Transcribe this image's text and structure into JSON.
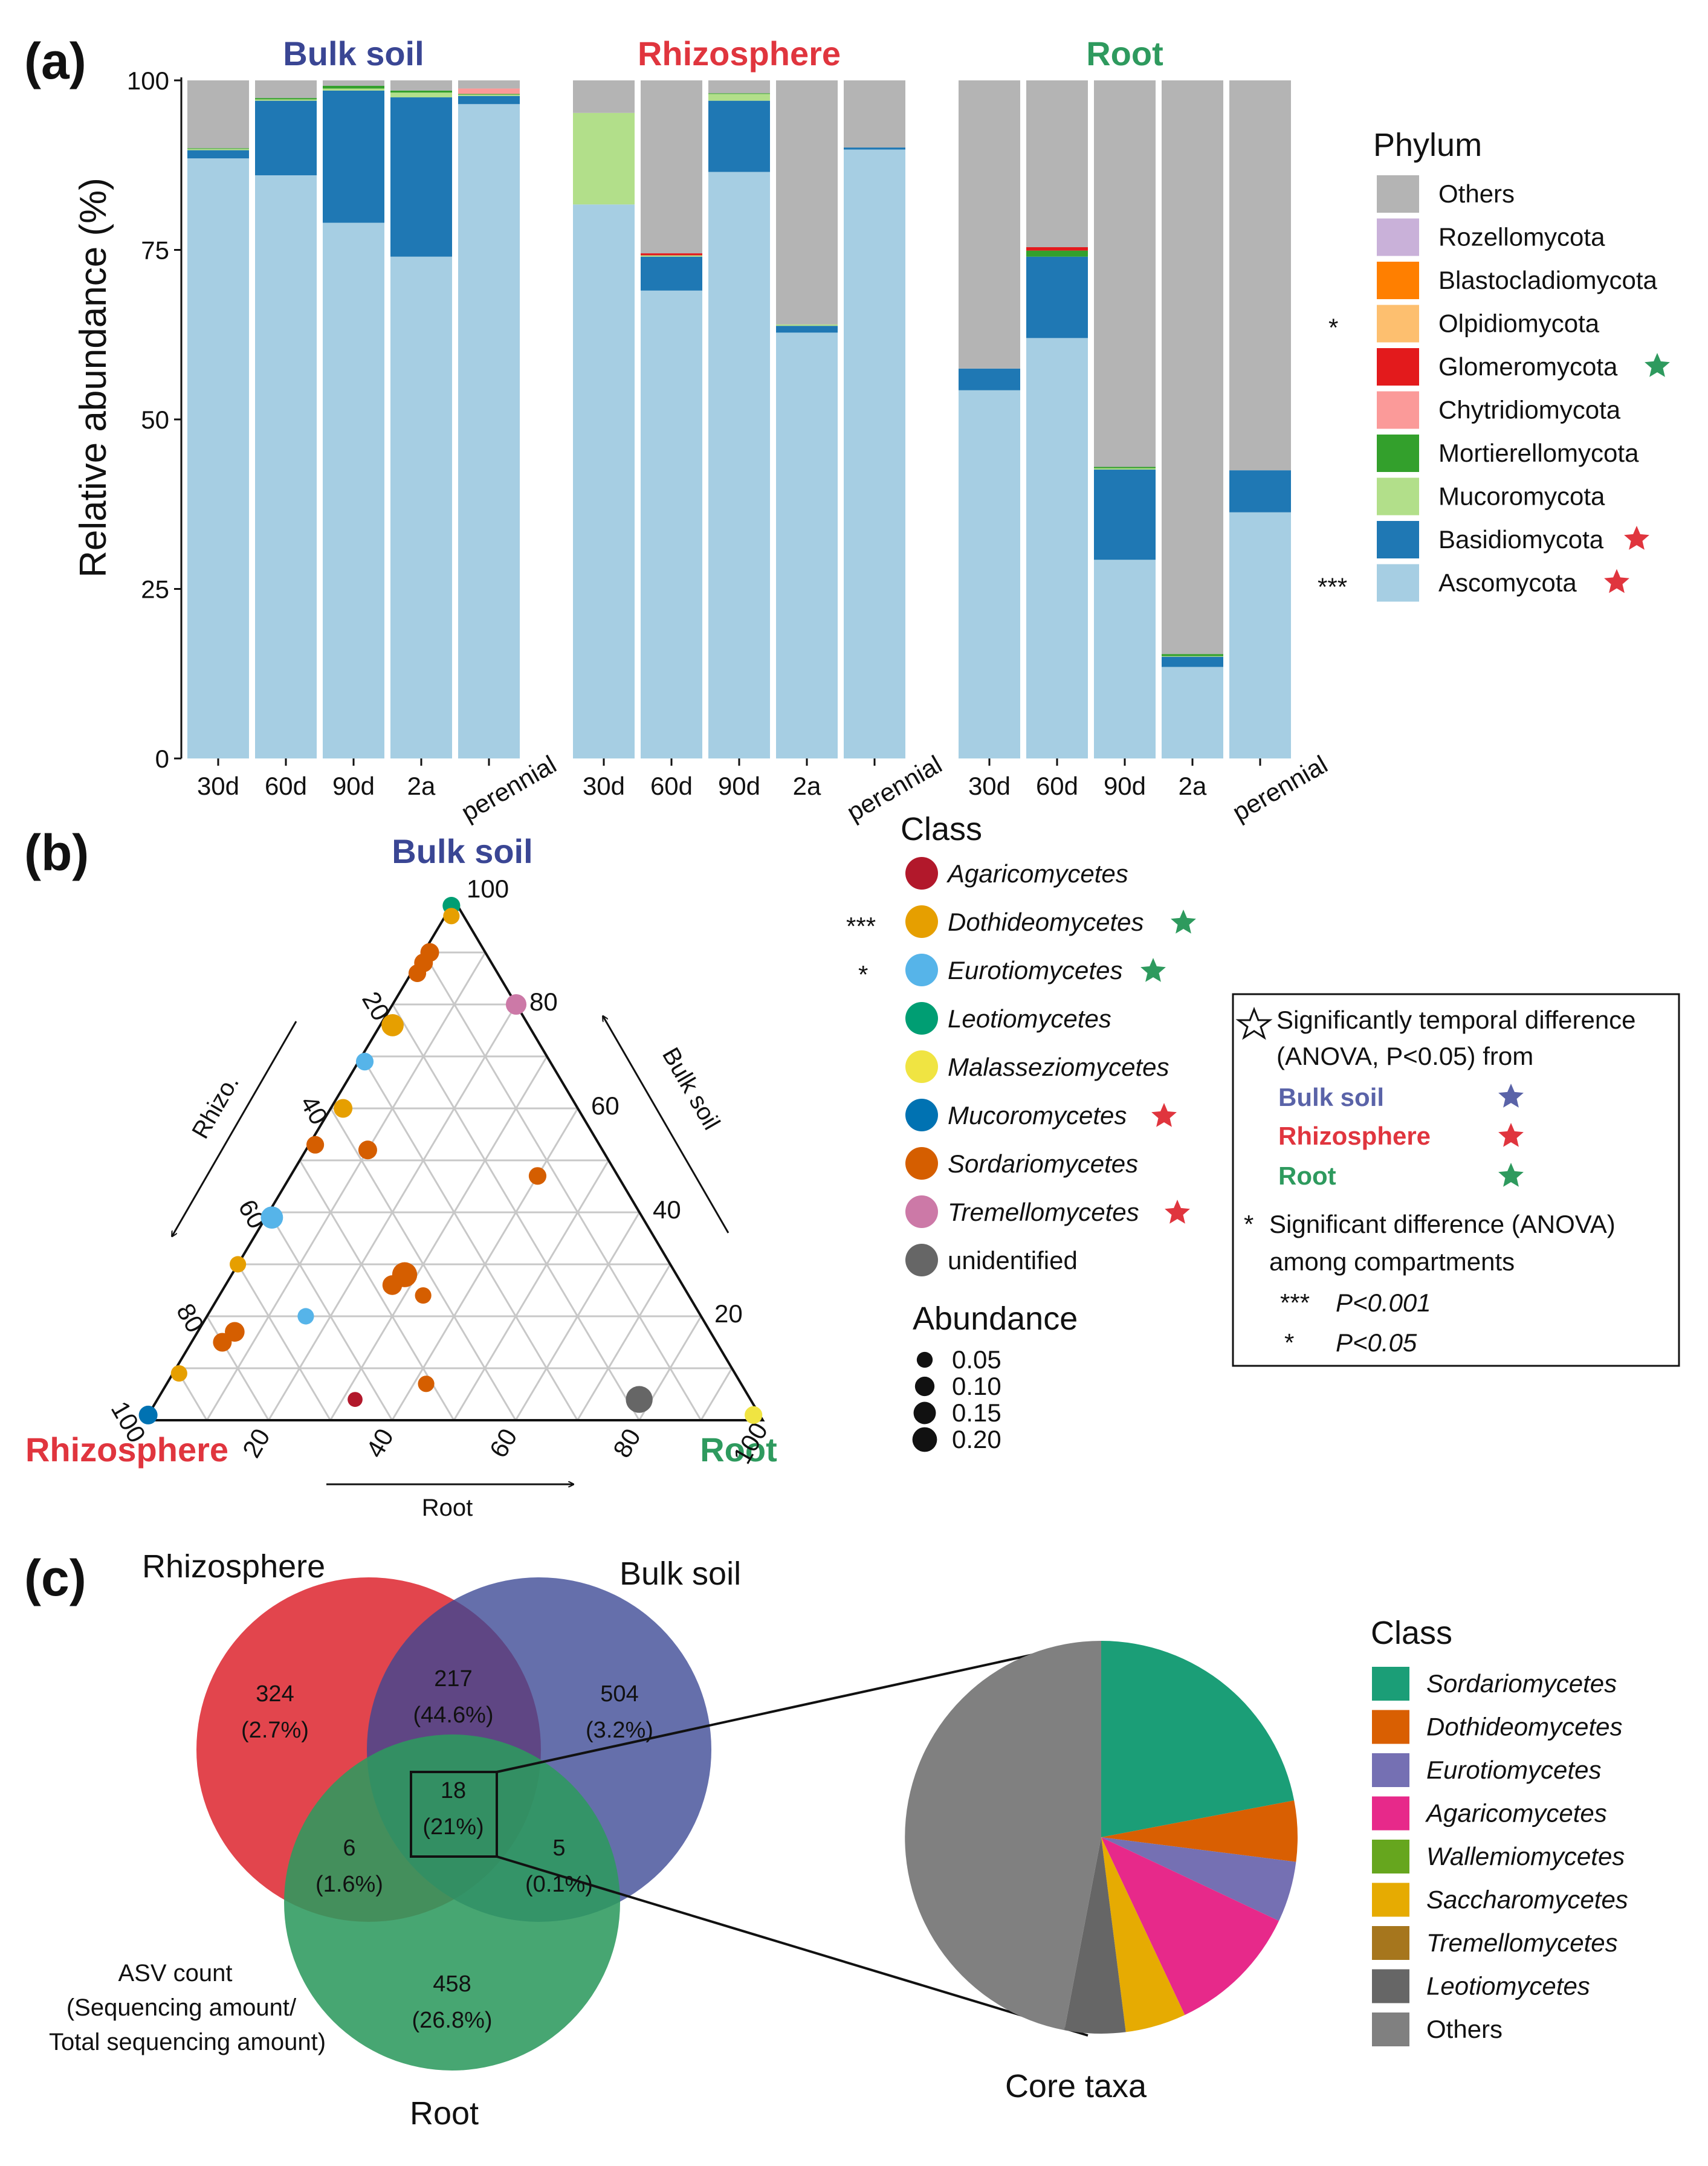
{
  "panels": {
    "a": "(a)",
    "b": "(b)",
    "c": "(c)"
  },
  "colors": {
    "bulk": "#3a4694",
    "rhizo": "#e0353e",
    "root": "#2e9a5e",
    "phyla": {
      "Others": "#b4b4b4",
      "Rozellomycota": "#c9b1d9",
      "Blastocladiomycota": "#ff7f00",
      "Olpidiomycota": "#fdbf6f",
      "Glomeromycota": "#e31a1c",
      "Chytridiomycota": "#fb9a99",
      "Mortierellomycota": "#33a02c",
      "Mucoromycota": "#b2df8a",
      "Basidiomycota": "#1f78b4",
      "Ascomycota": "#a6cee3"
    }
  },
  "chart_data": [
    {
      "type": "bar",
      "stacked": true,
      "ylabel": "Relative abundance (%)",
      "ylim": [
        0,
        100
      ],
      "yticks": [
        "0",
        "25",
        "50",
        "75",
        "100"
      ],
      "categories": [
        "30d",
        "60d",
        "90d",
        "2a",
        "perennial"
      ],
      "legend_title": "Phylum",
      "legend": [
        {
          "name": "Others",
          "sig": "",
          "star": ""
        },
        {
          "name": "Rozellomycota",
          "sig": "",
          "star": ""
        },
        {
          "name": "Blastocladiomycota",
          "sig": "",
          "star": ""
        },
        {
          "name": "Olpidiomycota",
          "sig": "*",
          "star": ""
        },
        {
          "name": "Glomeromycota",
          "sig": "",
          "star": "root"
        },
        {
          "name": "Chytridiomycota",
          "sig": "",
          "star": ""
        },
        {
          "name": "Mortierellomycota",
          "sig": "",
          "star": ""
        },
        {
          "name": "Mucoromycota",
          "sig": "",
          "star": ""
        },
        {
          "name": "Basidiomycota",
          "sig": "",
          "star": "rhizo"
        },
        {
          "name": "Ascomycota",
          "sig": "***",
          "star": "rhizo"
        }
      ],
      "stack_order": [
        "Ascomycota",
        "Basidiomycota",
        "Mucoromycota",
        "Mortierellomycota",
        "Chytridiomycota",
        "Glomeromycota",
        "Olpidiomycota",
        "Blastocladiomycota",
        "Rozellomycota",
        "Others"
      ],
      "facets": [
        {
          "name": "Bulk soil",
          "color_key": "bulk",
          "series": [
            {
              "name": "Ascomycota",
              "values": [
                88.5,
                86,
                79,
                74,
                96.5
              ]
            },
            {
              "name": "Basidiomycota",
              "values": [
                1.2,
                11,
                19.5,
                23.5,
                1.2
              ]
            },
            {
              "name": "Mucoromycota",
              "values": [
                0.2,
                0.2,
                0.3,
                0.7,
                0.2
              ]
            },
            {
              "name": "Mortierellomycota",
              "values": [
                0.1,
                0.2,
                0.4,
                0.3,
                0.1
              ]
            },
            {
              "name": "Chytridiomycota",
              "values": [
                0,
                0,
                0,
                0,
                0.8
              ]
            },
            {
              "name": "Glomeromycota",
              "values": [
                0,
                0,
                0,
                0,
                0
              ]
            },
            {
              "name": "Olpidiomycota",
              "values": [
                0,
                0,
                0,
                0,
                0
              ]
            },
            {
              "name": "Blastocladiomycota",
              "values": [
                0,
                0,
                0,
                0,
                0
              ]
            },
            {
              "name": "Rozellomycota",
              "values": [
                0,
                0,
                0,
                0,
                0
              ]
            },
            {
              "name": "Others",
              "values": [
                10,
                2.6,
                0.8,
                1.5,
                1.2
              ]
            }
          ]
        },
        {
          "name": "Rhizosphere",
          "color_key": "rhizo",
          "series": [
            {
              "name": "Ascomycota",
              "values": [
                81.7,
                69,
                86.5,
                62.8,
                89.8
              ]
            },
            {
              "name": "Basidiomycota",
              "values": [
                0,
                5,
                10.5,
                1,
                0.3
              ]
            },
            {
              "name": "Mucoromycota",
              "values": [
                13.5,
                0.2,
                1,
                0.2,
                0
              ]
            },
            {
              "name": "Mortierellomycota",
              "values": [
                0,
                0,
                0.1,
                0,
                0
              ]
            },
            {
              "name": "Chytridiomycota",
              "values": [
                0,
                0,
                0,
                0,
                0
              ]
            },
            {
              "name": "Glomeromycota",
              "values": [
                0,
                0.3,
                0,
                0,
                0
              ]
            },
            {
              "name": "Olpidiomycota",
              "values": [
                0,
                0,
                0,
                0,
                0
              ]
            },
            {
              "name": "Blastocladiomycota",
              "values": [
                0,
                0,
                0,
                0,
                0
              ]
            },
            {
              "name": "Rozellomycota",
              "values": [
                0,
                0,
                0,
                0,
                0
              ]
            },
            {
              "name": "Others",
              "values": [
                4.8,
                25.5,
                1.9,
                36,
                9.9
              ]
            }
          ]
        },
        {
          "name": "Root",
          "color_key": "root",
          "series": [
            {
              "name": "Ascomycota",
              "values": [
                54.3,
                62,
                29.3,
                13.5,
                36.3
              ]
            },
            {
              "name": "Basidiomycota",
              "values": [
                3.2,
                12,
                13.3,
                1.5,
                6.2
              ]
            },
            {
              "name": "Mucoromycota",
              "values": [
                0,
                0,
                0.2,
                0.1,
                0
              ]
            },
            {
              "name": "Mortierellomycota",
              "values": [
                0,
                0.9,
                0.2,
                0.3,
                0
              ]
            },
            {
              "name": "Chytridiomycota",
              "values": [
                0,
                0,
                0,
                0,
                0
              ]
            },
            {
              "name": "Glomeromycota",
              "values": [
                0,
                0.5,
                0,
                0,
                0
              ]
            },
            {
              "name": "Olpidiomycota",
              "values": [
                0,
                0,
                0,
                0,
                0
              ]
            },
            {
              "name": "Blastocladiomycota",
              "values": [
                0,
                0,
                0,
                0,
                0
              ]
            },
            {
              "name": "Rozellomycota",
              "values": [
                0,
                0,
                0,
                0,
                0
              ]
            },
            {
              "name": "Others",
              "values": [
                42.5,
                24.6,
                57,
                84.6,
                57.5
              ]
            }
          ]
        }
      ]
    },
    {
      "type": "ternary",
      "vertex_labels": {
        "top": "Bulk soil",
        "left": "Rhizosphere",
        "right": "Root"
      },
      "axis_names": {
        "left": "Rhizo.",
        "right": "Bulk soil",
        "bottom": "Root"
      },
      "ticks": [
        "20",
        "40",
        "60",
        "80",
        "100"
      ],
      "class_legend_title": "Class",
      "classes": [
        {
          "name": "Agaricomycetes",
          "color": "#b2182b",
          "sig": "",
          "star": ""
        },
        {
          "name": "Dothideomycetes",
          "color": "#e69f00",
          "sig": "***",
          "star": "root"
        },
        {
          "name": "Eurotiomycetes",
          "color": "#56b4e9",
          "sig": "*",
          "star": "root"
        },
        {
          "name": "Leotiomycetes",
          "color": "#009e73",
          "sig": "",
          "star": ""
        },
        {
          "name": "Malasseziomycetes",
          "color": "#f0e442",
          "sig": "",
          "star": ""
        },
        {
          "name": "Mucoromycetes",
          "color": "#0072b2",
          "sig": "",
          "star": "rhizo"
        },
        {
          "name": "Sordariomycetes",
          "color": "#d55e00",
          "sig": "",
          "star": ""
        },
        {
          "name": "Tremellomycetes",
          "color": "#cc79a7",
          "sig": "",
          "star": "rhizo"
        },
        {
          "name": "unidentified",
          "color": "#666666",
          "sig": "",
          "star": ""
        }
      ],
      "abundance_title": "Abundance",
      "abundance_levels": [
        "0.05",
        "0.10",
        "0.15",
        "0.20"
      ],
      "abundance_values": [
        0.05,
        0.1,
        0.15,
        0.2
      ],
      "points": [
        {
          "bulk": 99,
          "rhizo": 1,
          "root": 0,
          "class": 3,
          "abund": 0.04
        },
        {
          "bulk": 97,
          "rhizo": 2,
          "root": 1,
          "class": 1,
          "abund": 0.03
        },
        {
          "bulk": 90,
          "rhizo": 9,
          "root": 1,
          "class": 6,
          "abund": 0.05
        },
        {
          "bulk": 88,
          "rhizo": 11,
          "root": 1,
          "class": 6,
          "abund": 0.05
        },
        {
          "bulk": 86,
          "rhizo": 13,
          "root": 1,
          "class": 6,
          "abund": 0.04
        },
        {
          "bulk": 76,
          "rhizo": 22,
          "root": 2,
          "class": 1,
          "abund": 0.09
        },
        {
          "bulk": 80,
          "rhizo": 0,
          "root": 20,
          "class": 7,
          "abund": 0.07
        },
        {
          "bulk": 69,
          "rhizo": 30,
          "root": 1,
          "class": 2,
          "abund": 0.04
        },
        {
          "bulk": 60,
          "rhizo": 38,
          "root": 2,
          "class": 1,
          "abund": 0.05
        },
        {
          "bulk": 53,
          "rhizo": 46,
          "root": 1,
          "class": 6,
          "abund": 0.04
        },
        {
          "bulk": 52,
          "rhizo": 38,
          "root": 10,
          "class": 6,
          "abund": 0.05
        },
        {
          "bulk": 47,
          "rhizo": 13,
          "root": 40,
          "class": 6,
          "abund": 0.04
        },
        {
          "bulk": 39,
          "rhizo": 60,
          "root": 1,
          "class": 2,
          "abund": 0.09
        },
        {
          "bulk": 30,
          "rhizo": 70,
          "root": 0,
          "class": 1,
          "abund": 0.03
        },
        {
          "bulk": 28,
          "rhizo": 44,
          "root": 28,
          "class": 6,
          "abund": 0.13
        },
        {
          "bulk": 26,
          "rhizo": 47,
          "root": 27,
          "class": 6,
          "abund": 0.06
        },
        {
          "bulk": 24,
          "rhizo": 43,
          "root": 33,
          "class": 6,
          "abund": 0.03
        },
        {
          "bulk": 20,
          "rhizo": 64,
          "root": 16,
          "class": 2,
          "abund": 0.03
        },
        {
          "bulk": 17,
          "rhizo": 77,
          "root": 6,
          "class": 6,
          "abund": 0.06
        },
        {
          "bulk": 15,
          "rhizo": 80,
          "root": 5,
          "class": 6,
          "abund": 0.05
        },
        {
          "bulk": 9,
          "rhizo": 90,
          "root": 1,
          "class": 1,
          "abund": 0.03
        },
        {
          "bulk": 7,
          "rhizo": 51,
          "root": 42,
          "class": 6,
          "abund": 0.03
        },
        {
          "bulk": 4,
          "rhizo": 64,
          "root": 32,
          "class": 0,
          "abund": 0.02
        },
        {
          "bulk": 4,
          "rhizo": 18,
          "root": 78,
          "class": 8,
          "abund": 0.16
        },
        {
          "bulk": 1,
          "rhizo": 99,
          "root": 0,
          "class": 5,
          "abund": 0.05
        },
        {
          "bulk": 1,
          "rhizo": 1,
          "root": 98,
          "class": 4,
          "abund": 0.04
        }
      ]
    },
    {
      "type": "pie",
      "title": "Core taxa",
      "legend_title": "Class",
      "slices": [
        {
          "label": "Sordariomycetes",
          "value": 22,
          "color": "#1b9e77"
        },
        {
          "label": "Dothideomycetes",
          "value": 5,
          "color": "#d95f02"
        },
        {
          "label": "Eurotiomycetes",
          "value": 5,
          "color": "#7570b3"
        },
        {
          "label": "Agaricomycetes",
          "value": 11,
          "color": "#e7298a"
        },
        {
          "label": "Wallemiomycetes",
          "value": 0,
          "color": "#66a61e"
        },
        {
          "label": "Saccharomycetes",
          "value": 5,
          "color": "#e6ab02"
        },
        {
          "label": "Tremellomycetes",
          "value": 0,
          "color": "#a6761d"
        },
        {
          "label": "Leotiomycetes",
          "value": 5,
          "color": "#666666"
        },
        {
          "label": "Others",
          "value": 47,
          "color": "#808080"
        }
      ]
    }
  ],
  "legend_box": {
    "star_line1": "Significantly temporal difference",
    "star_line2": "(ANOVA, P<0.05) from",
    "bulk": "Bulk soil",
    "rhizo": "Rhizosphere",
    "root": "Root",
    "star_sig1": "*",
    "sig_line1": "Significant difference (ANOVA)",
    "sig_line2": "among compartments",
    "p_rows": [
      {
        "sym": "***",
        "text": "P<0.001"
      },
      {
        "sym": "*",
        "text": "P<0.05"
      }
    ]
  },
  "venn": {
    "sets": {
      "rhizo": "Rhizosphere",
      "bulk": "Bulk soil",
      "root": "Root"
    },
    "regions": [
      {
        "count": "324",
        "pct": "(2.7%)"
      },
      {
        "count": "217",
        "pct": "(44.6%)"
      },
      {
        "count": "504",
        "pct": "(3.2%)"
      },
      {
        "count": "18",
        "pct": "(21%)"
      },
      {
        "count": "6",
        "pct": "(1.6%)"
      },
      {
        "count": "5",
        "pct": "(0.1%)"
      },
      {
        "count": "458",
        "pct": "(26.8%)"
      }
    ],
    "note": [
      "ASV count",
      "(Sequencing amount/",
      "Total sequencing amount)"
    ]
  }
}
